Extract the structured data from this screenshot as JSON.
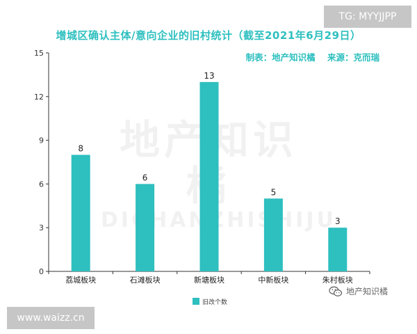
{
  "watermark_tags": {
    "tg": "TG: MYYJJPP",
    "url": "www.waizz.cn"
  },
  "credit": "制表：地产知识橘    来源：克而瑞",
  "logo": {
    "icon": "wechat-icon",
    "text": "地产知识橘"
  },
  "chart_data": {
    "type": "bar",
    "title": "增城区确认主体/意向企业的旧村统计（截至2021年6月29日）",
    "categories": [
      "荔城板块",
      "石滩板块",
      "新塘板块",
      "中新板块",
      "朱村板块"
    ],
    "series": [
      {
        "name": "旧改个数",
        "values": [
          8,
          6,
          13,
          5,
          3
        ]
      }
    ],
    "xlabel": "",
    "ylabel": "",
    "ylim": [
      0,
      15
    ],
    "yticks": [
      0,
      3,
      6,
      9,
      12,
      15
    ],
    "grid": false,
    "legend_position": "bottom",
    "bar_color": "#2ebfbf",
    "watermark": {
      "cn": "地产知识橘",
      "en": "DICHANZHISHIJU"
    }
  }
}
